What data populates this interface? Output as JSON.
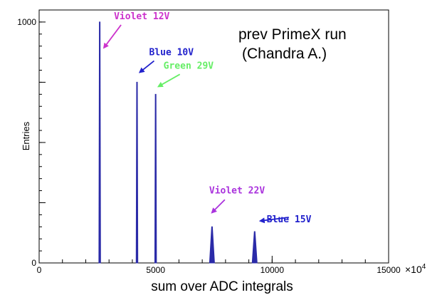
{
  "chart_data": {
    "type": "line",
    "xlabel": "sum over ADC integrals",
    "ylabel": "Entries",
    "x_exponent_label": "×10",
    "x_exponent_power": "4",
    "xlim": [
      0,
      15000
    ],
    "ylim": [
      0,
      1050
    ],
    "x_ticks": [
      0,
      5000,
      10000,
      15000
    ],
    "y_tick_labels": [
      {
        "value": 0,
        "label": "0"
      },
      {
        "value": 1000,
        "label": "1000"
      }
    ],
    "y_major_ticks": [
      0,
      250,
      500,
      750,
      1000
    ],
    "series_color": "#2b2ba8",
    "peaks": [
      {
        "x": 2600,
        "height": 1000,
        "label": "Violet 12V",
        "color": "#cc33cc"
      },
      {
        "x": 4200,
        "height": 750,
        "label": "Blue 10V",
        "color": "#2222cc"
      },
      {
        "x": 5000,
        "height": 700,
        "label": "Green 29V",
        "color": "#66ee66"
      },
      {
        "x": 7420,
        "height": 150,
        "label": "Violet 22V",
        "color": "#aa33dd"
      },
      {
        "x": 9250,
        "height": 130,
        "label": "Blue 15V",
        "color": "#2222cc"
      }
    ],
    "annotations": [
      "prev PrimeX run",
      "(Chandra A.)"
    ]
  }
}
